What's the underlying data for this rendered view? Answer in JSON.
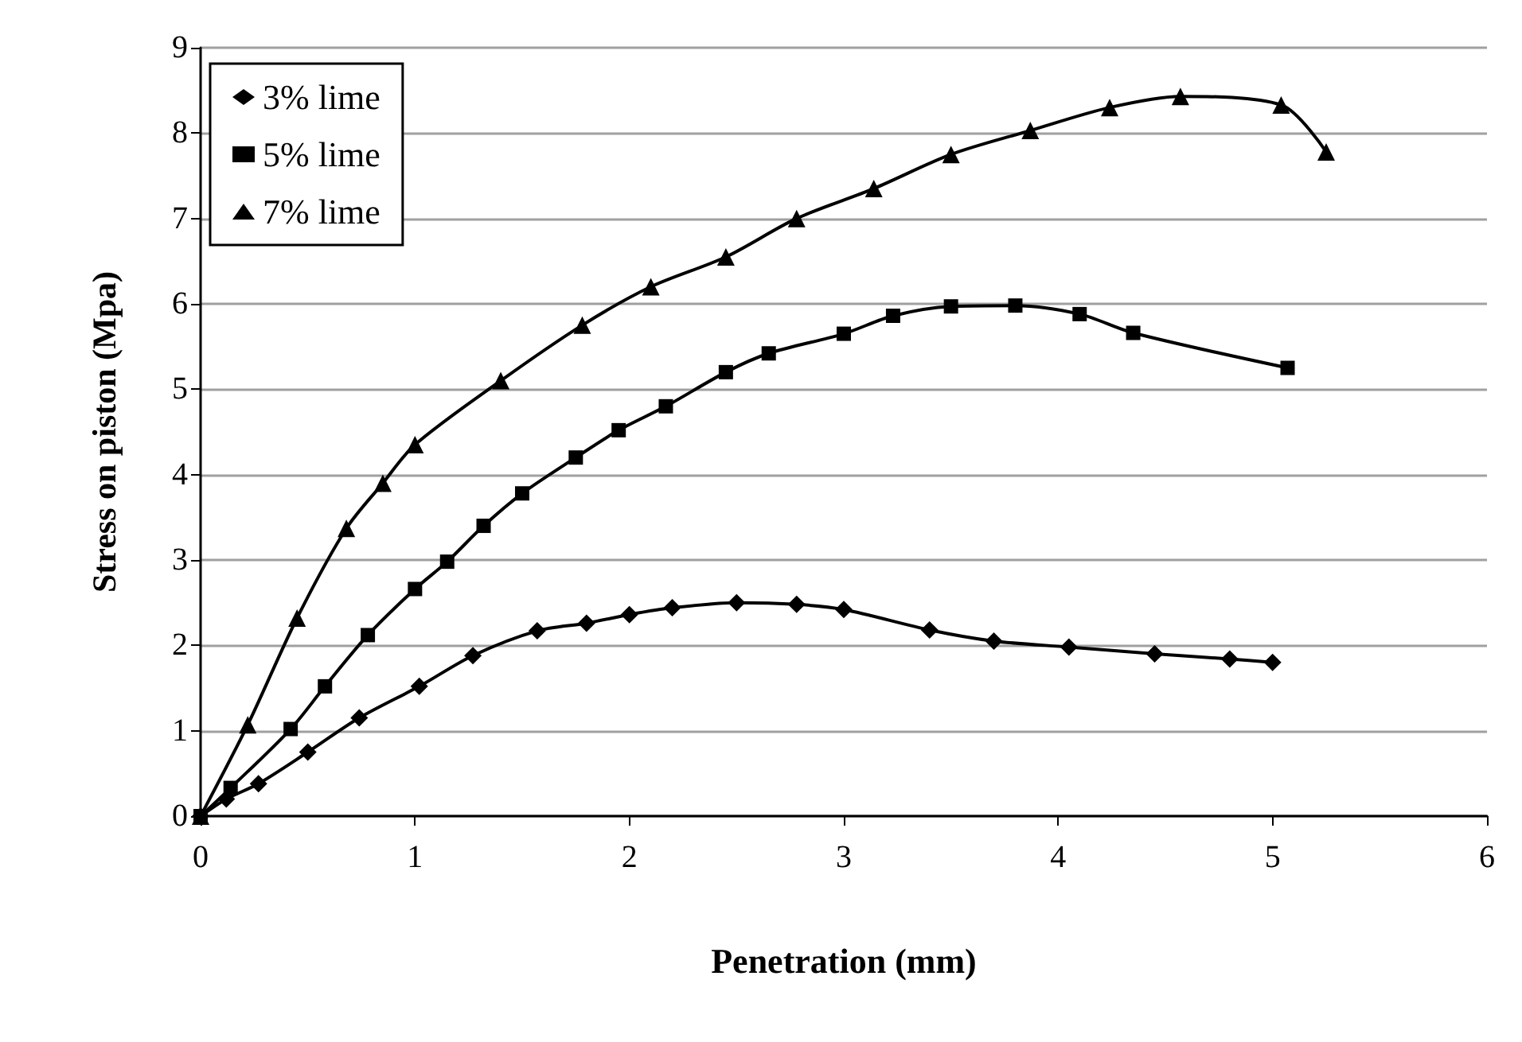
{
  "chart_data": {
    "type": "line",
    "xlabel": "Penetration (mm)",
    "ylabel": "Stress on piston (Mpa)",
    "xlim": [
      0,
      6
    ],
    "xticks": [
      0,
      1,
      2,
      3,
      4,
      5,
      6
    ],
    "ylim": [
      0,
      9
    ],
    "yticks": [
      0,
      1,
      2,
      3,
      4,
      5,
      6,
      7,
      8,
      9
    ],
    "grid": "y",
    "legend": "top left",
    "series": [
      {
        "name": "3% lime",
        "color": "#000000",
        "marker": "diamond",
        "x": [
          0,
          0.12,
          0.27,
          0.5,
          0.74,
          1.02,
          1.27,
          1.57,
          1.8,
          2.0,
          2.2,
          2.5,
          2.78,
          3.0,
          3.4,
          3.7,
          4.05,
          4.45,
          4.8,
          5.0
        ],
        "values": [
          0,
          0.2,
          0.38,
          0.75,
          1.15,
          1.52,
          1.88,
          2.17,
          2.26,
          2.36,
          2.44,
          2.5,
          2.48,
          2.42,
          2.18,
          2.05,
          1.98,
          1.9,
          1.84,
          1.8
        ]
      },
      {
        "name": "5% lime",
        "color": "#000000",
        "marker": "square",
        "x": [
          0,
          0.14,
          0.42,
          0.58,
          0.78,
          1.0,
          1.15,
          1.32,
          1.5,
          1.75,
          1.95,
          2.17,
          2.45,
          2.65,
          3.0,
          3.23,
          3.5,
          3.8,
          4.1,
          4.35,
          5.07
        ],
        "values": [
          0,
          0.33,
          1.02,
          1.52,
          2.12,
          2.66,
          2.98,
          3.4,
          3.78,
          4.2,
          4.52,
          4.8,
          5.2,
          5.42,
          5.65,
          5.86,
          5.97,
          5.98,
          5.88,
          5.66,
          5.25
        ]
      },
      {
        "name": "7% lime",
        "color": "#000000",
        "marker": "triangle",
        "x": [
          0,
          0.22,
          0.45,
          0.68,
          0.85,
          1.0,
          1.4,
          1.78,
          2.1,
          2.45,
          2.78,
          3.14,
          3.5,
          3.87,
          4.24,
          4.57,
          5.04,
          5.25
        ],
        "values": [
          0,
          1.07,
          2.32,
          3.37,
          3.9,
          4.35,
          5.1,
          5.75,
          6.2,
          6.55,
          7.0,
          7.35,
          7.75,
          8.03,
          8.3,
          8.43,
          8.33,
          7.78
        ]
      }
    ]
  }
}
